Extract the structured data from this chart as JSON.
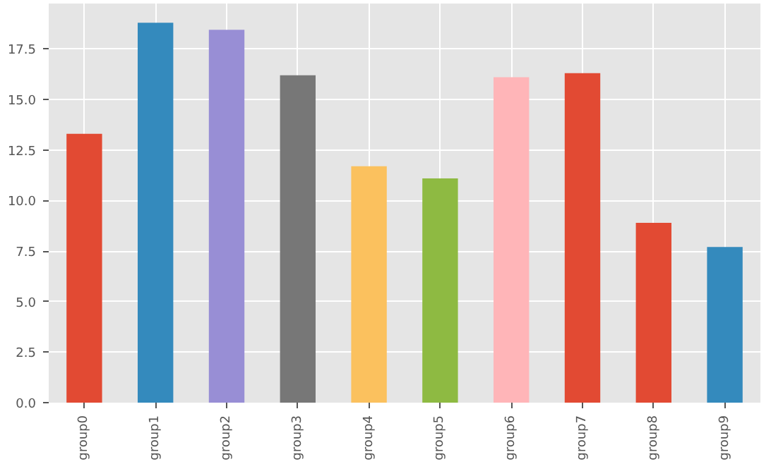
{
  "chart_data": {
    "type": "bar",
    "categories": [
      "group0",
      "group1",
      "group2",
      "group3",
      "group4",
      "group5",
      "group6",
      "group7",
      "group8",
      "group9"
    ],
    "values": [
      13.3,
      18.8,
      18.45,
      16.2,
      11.7,
      11.1,
      16.1,
      16.3,
      8.9,
      7.7
    ],
    "colors": [
      "#e24a33",
      "#348abd",
      "#988ed5",
      "#777777",
      "#fbc15e",
      "#8eba42",
      "#ffb5b8",
      "#e24a33",
      "#e24a33",
      "#348abd"
    ],
    "ylim": [
      0,
      19.75
    ],
    "yticks": [
      {
        "value": 0,
        "label": "0.0"
      },
      {
        "value": 2.5,
        "label": "2.5"
      },
      {
        "value": 5,
        "label": "5.0"
      },
      {
        "value": 7.5,
        "label": "7.5"
      },
      {
        "value": 10,
        "label": "10.0"
      },
      {
        "value": 12.5,
        "label": "12.5"
      },
      {
        "value": 15,
        "label": "15.0"
      },
      {
        "value": 17.5,
        "label": "17.5"
      }
    ],
    "grid": true
  }
}
